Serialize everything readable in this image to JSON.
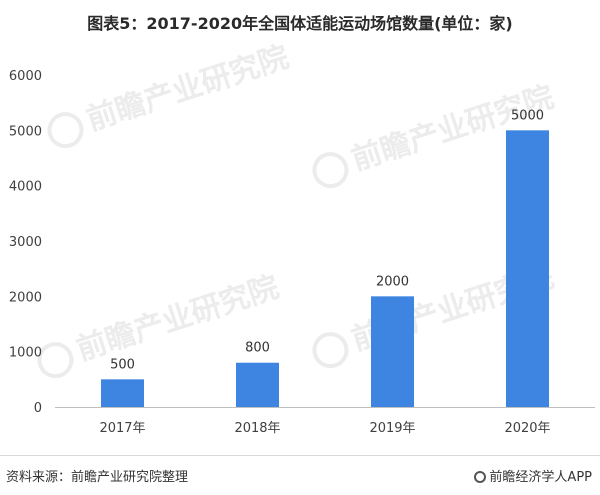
{
  "chart_data": {
    "type": "bar",
    "title": "图表5：2017-2020年全国体适能运动场馆数量(单位：家)",
    "categories": [
      "2017年",
      "2018年",
      "2019年",
      "2020年"
    ],
    "values": [
      500,
      800,
      2000,
      5000
    ],
    "data_labels": [
      "500",
      "800",
      "2000",
      "5000"
    ],
    "yticks": [
      "0",
      "1000",
      "2000",
      "3000",
      "4000",
      "5000",
      "6000"
    ],
    "ylim": [
      0,
      6000
    ],
    "xlabel": "",
    "ylabel": "",
    "grid": false,
    "bar_color": "#3d85e0"
  },
  "footer": {
    "source": "资料来源：前瞻产业研究院整理",
    "brand": "前瞻经济学人APP"
  },
  "watermark": {
    "text": "前瞻产业研究院"
  }
}
